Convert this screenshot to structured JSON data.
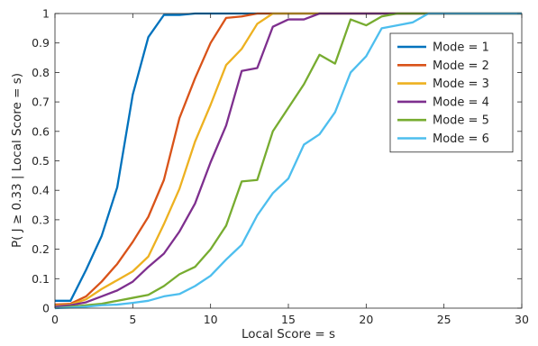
{
  "chart_data": {
    "type": "line",
    "title": "",
    "xlabel": "Local Score = s",
    "ylabel": "P( J ≥ 0.33 | Local Score = s)",
    "xlim": [
      0,
      30
    ],
    "ylim": [
      0,
      1
    ],
    "xticks": [
      0,
      5,
      10,
      15,
      20,
      25,
      30
    ],
    "yticks": [
      0,
      0.1,
      0.2,
      0.3,
      0.4,
      0.5,
      0.6,
      0.7,
      0.8,
      0.9,
      1
    ],
    "ytick_labels": [
      "0",
      "0.1",
      "0.2",
      "0.3",
      "0.4",
      "0.5",
      "0.6",
      "0.7",
      "0.8",
      "0.9",
      "1"
    ],
    "grid": false,
    "legend_position": "top-right",
    "x": [
      0,
      1,
      2,
      3,
      4,
      5,
      6,
      7,
      8,
      9,
      10,
      11,
      12,
      13,
      14,
      15,
      16,
      17,
      18,
      19,
      20,
      21,
      22,
      23,
      24,
      25,
      26,
      27,
      28,
      29,
      30
    ],
    "series": [
      {
        "name": "Mode = 1",
        "color": "#0072BD",
        "values": [
          0.025,
          0.025,
          0.13,
          0.245,
          0.41,
          0.725,
          0.92,
          0.995,
          0.995,
          1,
          1,
          1,
          1,
          1,
          1,
          1,
          1,
          1,
          1,
          1,
          1,
          1,
          1,
          1,
          1,
          1,
          1,
          1,
          1,
          1,
          1
        ]
      },
      {
        "name": "Mode = 2",
        "color": "#D95319",
        "values": [
          0.012,
          0.015,
          0.04,
          0.09,
          0.15,
          0.225,
          0.31,
          0.435,
          0.645,
          0.78,
          0.9,
          0.985,
          0.99,
          1,
          1,
          1,
          1,
          1,
          1,
          1,
          1,
          1,
          1,
          1,
          1,
          1,
          1,
          1,
          1,
          1,
          1
        ]
      },
      {
        "name": "Mode = 3",
        "color": "#EDB120",
        "values": [
          0.008,
          0.012,
          0.03,
          0.065,
          0.095,
          0.125,
          0.175,
          0.285,
          0.405,
          0.565,
          0.69,
          0.825,
          0.88,
          0.965,
          1,
          1,
          1,
          1,
          1,
          1,
          1,
          1,
          1,
          1,
          1,
          1,
          1,
          1,
          1,
          1,
          1
        ]
      },
      {
        "name": "Mode = 4",
        "color": "#7E2F8E",
        "values": [
          0.005,
          0.01,
          0.02,
          0.04,
          0.06,
          0.09,
          0.14,
          0.185,
          0.26,
          0.355,
          0.495,
          0.62,
          0.805,
          0.815,
          0.955,
          0.98,
          0.98,
          1,
          1,
          1,
          1,
          1,
          1,
          1,
          1,
          1,
          1,
          1,
          1,
          1,
          1
        ]
      },
      {
        "name": "Mode = 5",
        "color": "#77AC30",
        "values": [
          0,
          0.005,
          0.01,
          0.015,
          0.025,
          0.035,
          0.045,
          0.075,
          0.115,
          0.14,
          0.2,
          0.28,
          0.43,
          0.435,
          0.6,
          0.68,
          0.76,
          0.86,
          0.83,
          0.98,
          0.96,
          0.99,
          1,
          1,
          1,
          1,
          1,
          1,
          1,
          1,
          1
        ]
      },
      {
        "name": "Mode = 6",
        "color": "#4DBEEE",
        "values": [
          0,
          0.002,
          0.005,
          0.01,
          0.012,
          0.018,
          0.025,
          0.04,
          0.048,
          0.075,
          0.11,
          0.165,
          0.215,
          0.315,
          0.39,
          0.44,
          0.555,
          0.59,
          0.665,
          0.8,
          0.855,
          0.95,
          0.96,
          0.97,
          1,
          1,
          1,
          1,
          1,
          1,
          1
        ]
      }
    ]
  }
}
